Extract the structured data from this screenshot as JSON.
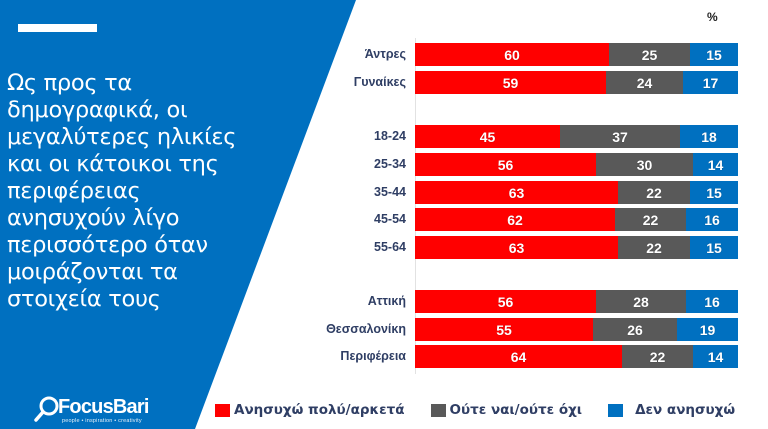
{
  "panel": {
    "headline_lines": [
      "Ως προς τα",
      "δημογραφικά, οι",
      "μεγαλύτερες ηλικίες",
      "και οι κάτοικοι της",
      "περιφέρειας",
      "ανησυχούν λίγο",
      "περισσότερο όταν",
      "μοιράζονται τα",
      "στοιχεία τους"
    ],
    "accent_color": "#0070c0"
  },
  "logo": {
    "name": "FocusBari",
    "tagline": "people • inspiration • creativity",
    "icon": "magnifier-icon"
  },
  "chart_data": {
    "type": "bar",
    "orientation": "horizontal",
    "stacked": true,
    "unit_label": "%",
    "xlim": [
      0,
      100
    ],
    "categories": [
      "Άντρες",
      "Γυναίκες",
      "18-24",
      "25-34",
      "35-44",
      "45-54",
      "55-64",
      "Αττική",
      "Θεσσαλονίκη",
      "Περιφέρεια"
    ],
    "groups": [
      {
        "name": "gender",
        "categories": [
          "Άντρες",
          "Γυναίκες"
        ]
      },
      {
        "name": "age",
        "categories": [
          "18-24",
          "25-34",
          "35-44",
          "45-54",
          "55-64"
        ]
      },
      {
        "name": "region",
        "categories": [
          "Αττική",
          "Θεσσαλονίκη",
          "Περιφέρεια"
        ]
      }
    ],
    "series": [
      {
        "name": "Ανησυχώ πολύ/αρκετά",
        "color": "#ff0000",
        "values": [
          60,
          59,
          45,
          56,
          63,
          62,
          63,
          56,
          55,
          64
        ]
      },
      {
        "name": "Ούτε ναι/ούτε όχι",
        "color": "#595959",
        "values": [
          25,
          24,
          37,
          30,
          22,
          22,
          22,
          28,
          26,
          22
        ]
      },
      {
        "name": "Δεν ανησυχώ",
        "color": "#0070c0",
        "values": [
          15,
          17,
          18,
          14,
          15,
          16,
          15,
          16,
          19,
          14
        ]
      }
    ],
    "legend_position": "bottom",
    "grid": false
  }
}
